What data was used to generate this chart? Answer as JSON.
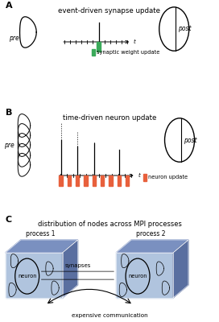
{
  "title_A": "event-driven synapse update",
  "title_B": "time-driven neuron update",
  "title_C": "distribution of nodes across MPI processes",
  "label_pre": "pre",
  "label_post": "post",
  "label_t": "t",
  "label_synaptic": "synaptic weight update",
  "label_neuron_update": "neuron update",
  "label_process1": "process 1",
  "label_process2": "process 2",
  "label_neuron_circle": "neuron",
  "label_synapses": "synapses",
  "label_communication": "expensive communication",
  "green_color": "#3aaa5a",
  "orange_color": "#e8603c",
  "blue_dark": "#5a6fa0",
  "blue_mid": "#7a90c0",
  "blue_light": "#b0c4de",
  "blue_lighter": "#d0dff0",
  "background": "#ffffff"
}
